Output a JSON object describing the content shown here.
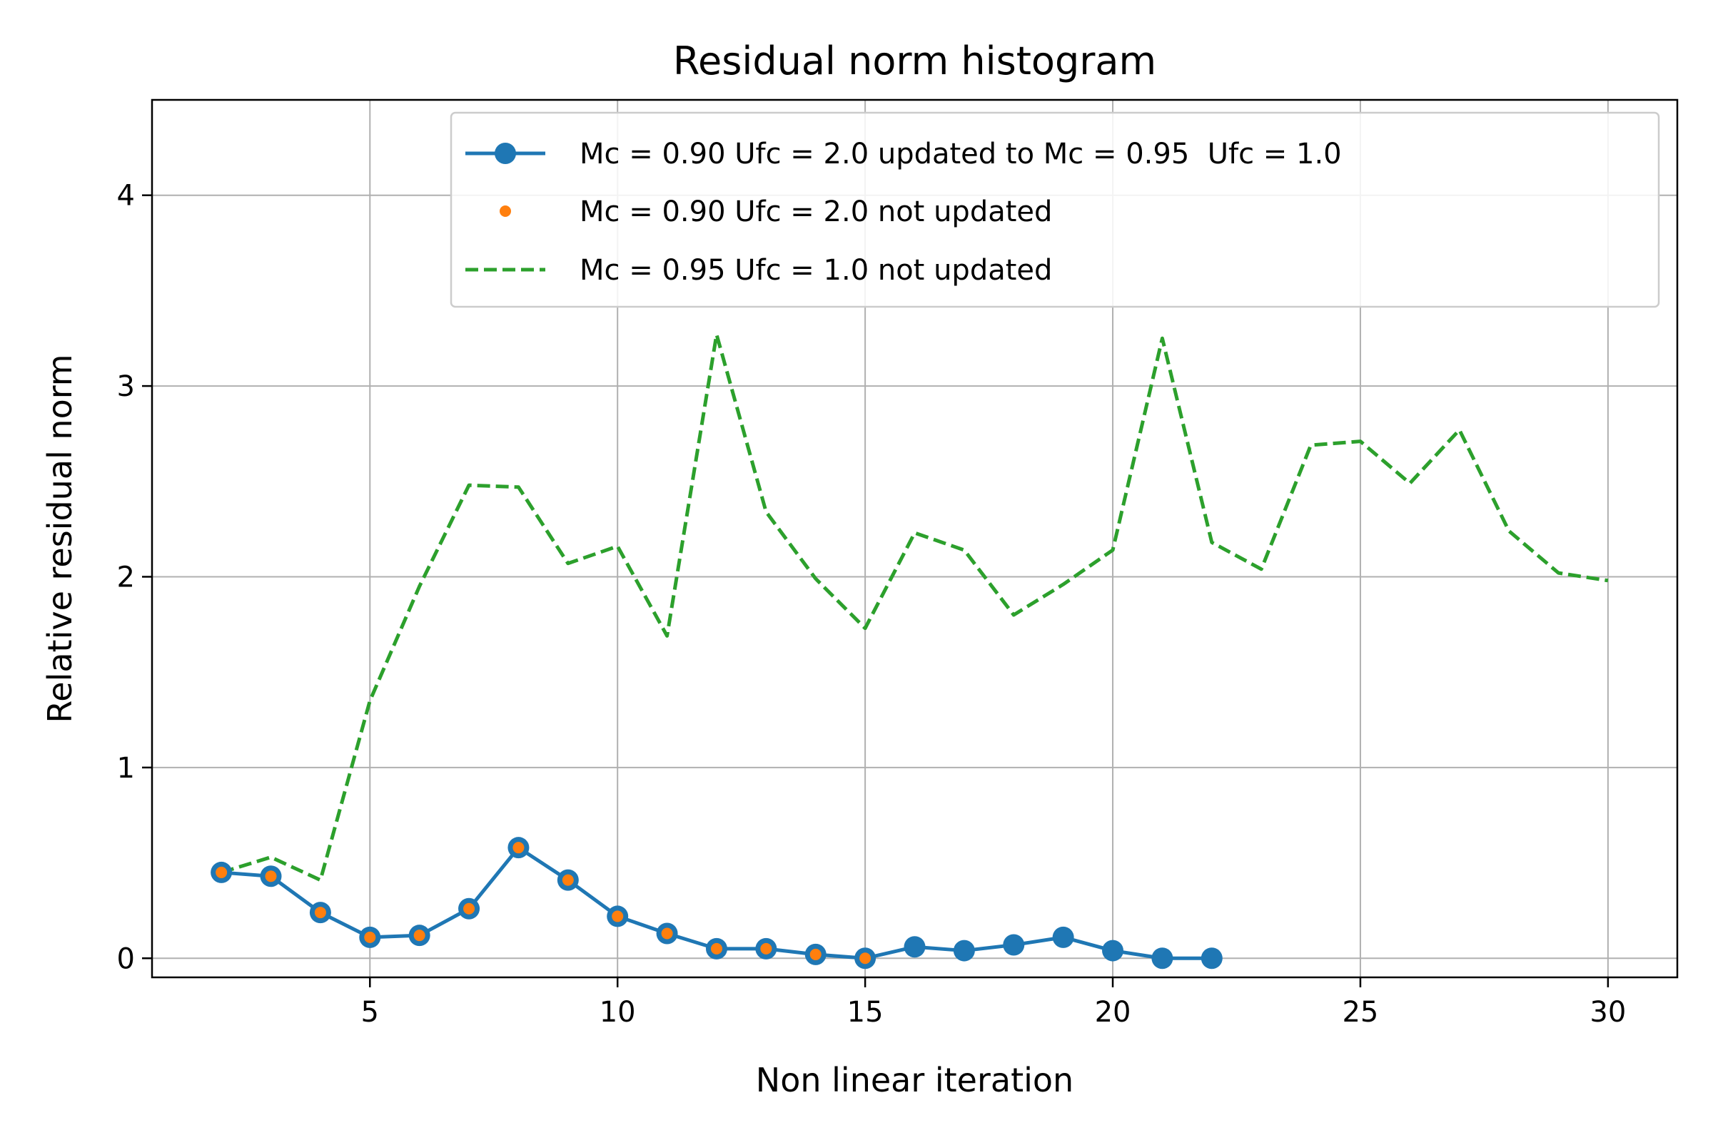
{
  "chart_data": {
    "type": "line",
    "title": "Residual norm histogram",
    "xlabel": "Non linear iteration",
    "ylabel": "Relative residual norm",
    "xlim": [
      0.6,
      31.4
    ],
    "ylim": [
      -0.1,
      4.5
    ],
    "xticks": [
      5,
      10,
      15,
      20,
      25,
      30
    ],
    "yticks": [
      0,
      1,
      2,
      3,
      4
    ],
    "grid": true,
    "legend_position": "top-right",
    "series": [
      {
        "name": "Mc = 0.90 Ufc = 2.0 updated to Mc = 0.95  Ufc = 1.0",
        "style": "solid-line-with-circle-markers",
        "color": "#1f77b4",
        "x": [
          2,
          3,
          4,
          5,
          6,
          7,
          8,
          9,
          10,
          11,
          12,
          13,
          14,
          15,
          16,
          17,
          18,
          19,
          20,
          21,
          22
        ],
        "values": [
          0.45,
          0.43,
          0.24,
          0.11,
          0.12,
          0.26,
          0.58,
          0.41,
          0.22,
          0.13,
          0.05,
          0.05,
          0.02,
          0.0,
          0.06,
          0.04,
          0.07,
          0.11,
          0.04,
          0.0,
          0.0
        ]
      },
      {
        "name": "Mc = 0.90 Ufc = 2.0 not updated",
        "style": "markers-only",
        "color": "#ff7f0e",
        "x": [
          2,
          3,
          4,
          5,
          6,
          7,
          8,
          9,
          10,
          11,
          12,
          13,
          14,
          15
        ],
        "values": [
          0.45,
          0.43,
          0.24,
          0.11,
          0.12,
          0.26,
          0.58,
          0.41,
          0.22,
          0.13,
          0.05,
          0.05,
          0.02,
          0.0
        ]
      },
      {
        "name": "Mc = 0.95 Ufc = 1.0 not updated",
        "style": "dashed-line",
        "color": "#2ca02c",
        "x": [
          2,
          3,
          4,
          5,
          6,
          7,
          8,
          9,
          10,
          11,
          12,
          13,
          14,
          15,
          16,
          17,
          18,
          19,
          20,
          21,
          22,
          23,
          24,
          25,
          26,
          27,
          28,
          29,
          30
        ],
        "values": [
          0.45,
          0.53,
          0.41,
          1.35,
          1.95,
          2.48,
          2.47,
          2.07,
          2.16,
          1.69,
          3.27,
          2.34,
          1.99,
          1.73,
          2.23,
          2.14,
          1.8,
          1.96,
          2.14,
          3.25,
          2.18,
          2.04,
          2.69,
          2.71,
          2.49,
          2.77,
          2.24,
          2.02,
          1.98
        ]
      }
    ]
  }
}
